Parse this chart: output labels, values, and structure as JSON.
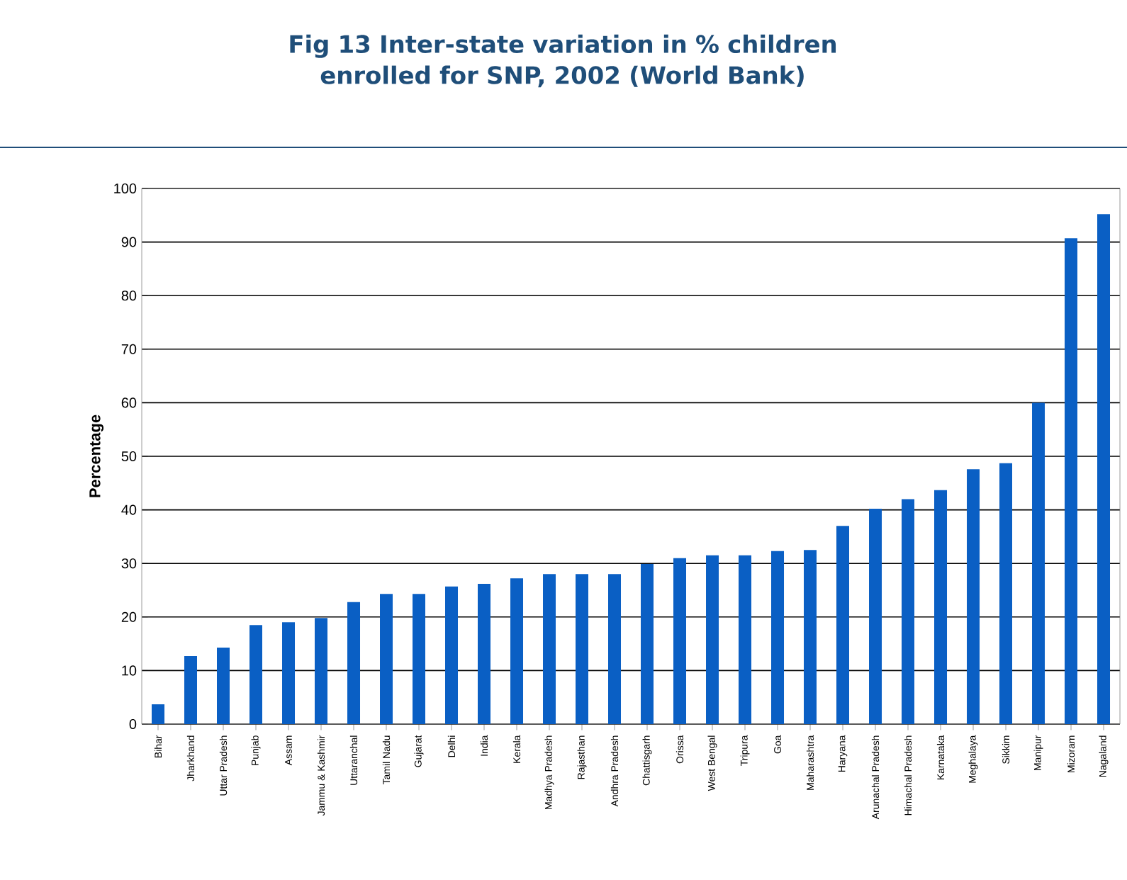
{
  "chart_data": {
    "type": "bar",
    "title": "Fig 13 Inter-state variation in % children enrolled for SNP, 2002 (World Bank)",
    "ylabel": "Percentage",
    "categories": [
      "Bihar",
      "Jharkhand",
      "Uttar Pradesh",
      "Punjab",
      "Assam",
      "Jammu & Kashmir",
      "Uttaranchal",
      "Tamil Nadu",
      "Gujarat",
      "Delhi",
      "India",
      "Kerala",
      "Madhya Pradesh",
      "Rajasthan",
      "Andhra Pradesh",
      "Chattisgarh",
      "Orissa",
      "West Bengal",
      "Tripura",
      "Goa",
      "Maharashtra",
      "Haryana",
      "Arunachal Pradesh",
      "Himachal Pradesh",
      "Karnataka",
      "Meghalaya",
      "Sikkim",
      "Manipur",
      "Mizoram",
      "Nagaland"
    ],
    "values": [
      3.7,
      12.7,
      14.3,
      18.5,
      19,
      19.8,
      22.8,
      24.3,
      24.3,
      25.7,
      26.2,
      27.2,
      28,
      28,
      28,
      29.9,
      31,
      31.5,
      31.5,
      32.3,
      32.5,
      37,
      40.2,
      42,
      43.7,
      47.6,
      48.7,
      60,
      90.7,
      95.2
    ],
    "color": "#0a5fc4",
    "ylim": [
      0,
      100
    ],
    "yticks": [
      0,
      10,
      20,
      30,
      40,
      50,
      60,
      70,
      80,
      90,
      100
    ],
    "grid": "y"
  }
}
